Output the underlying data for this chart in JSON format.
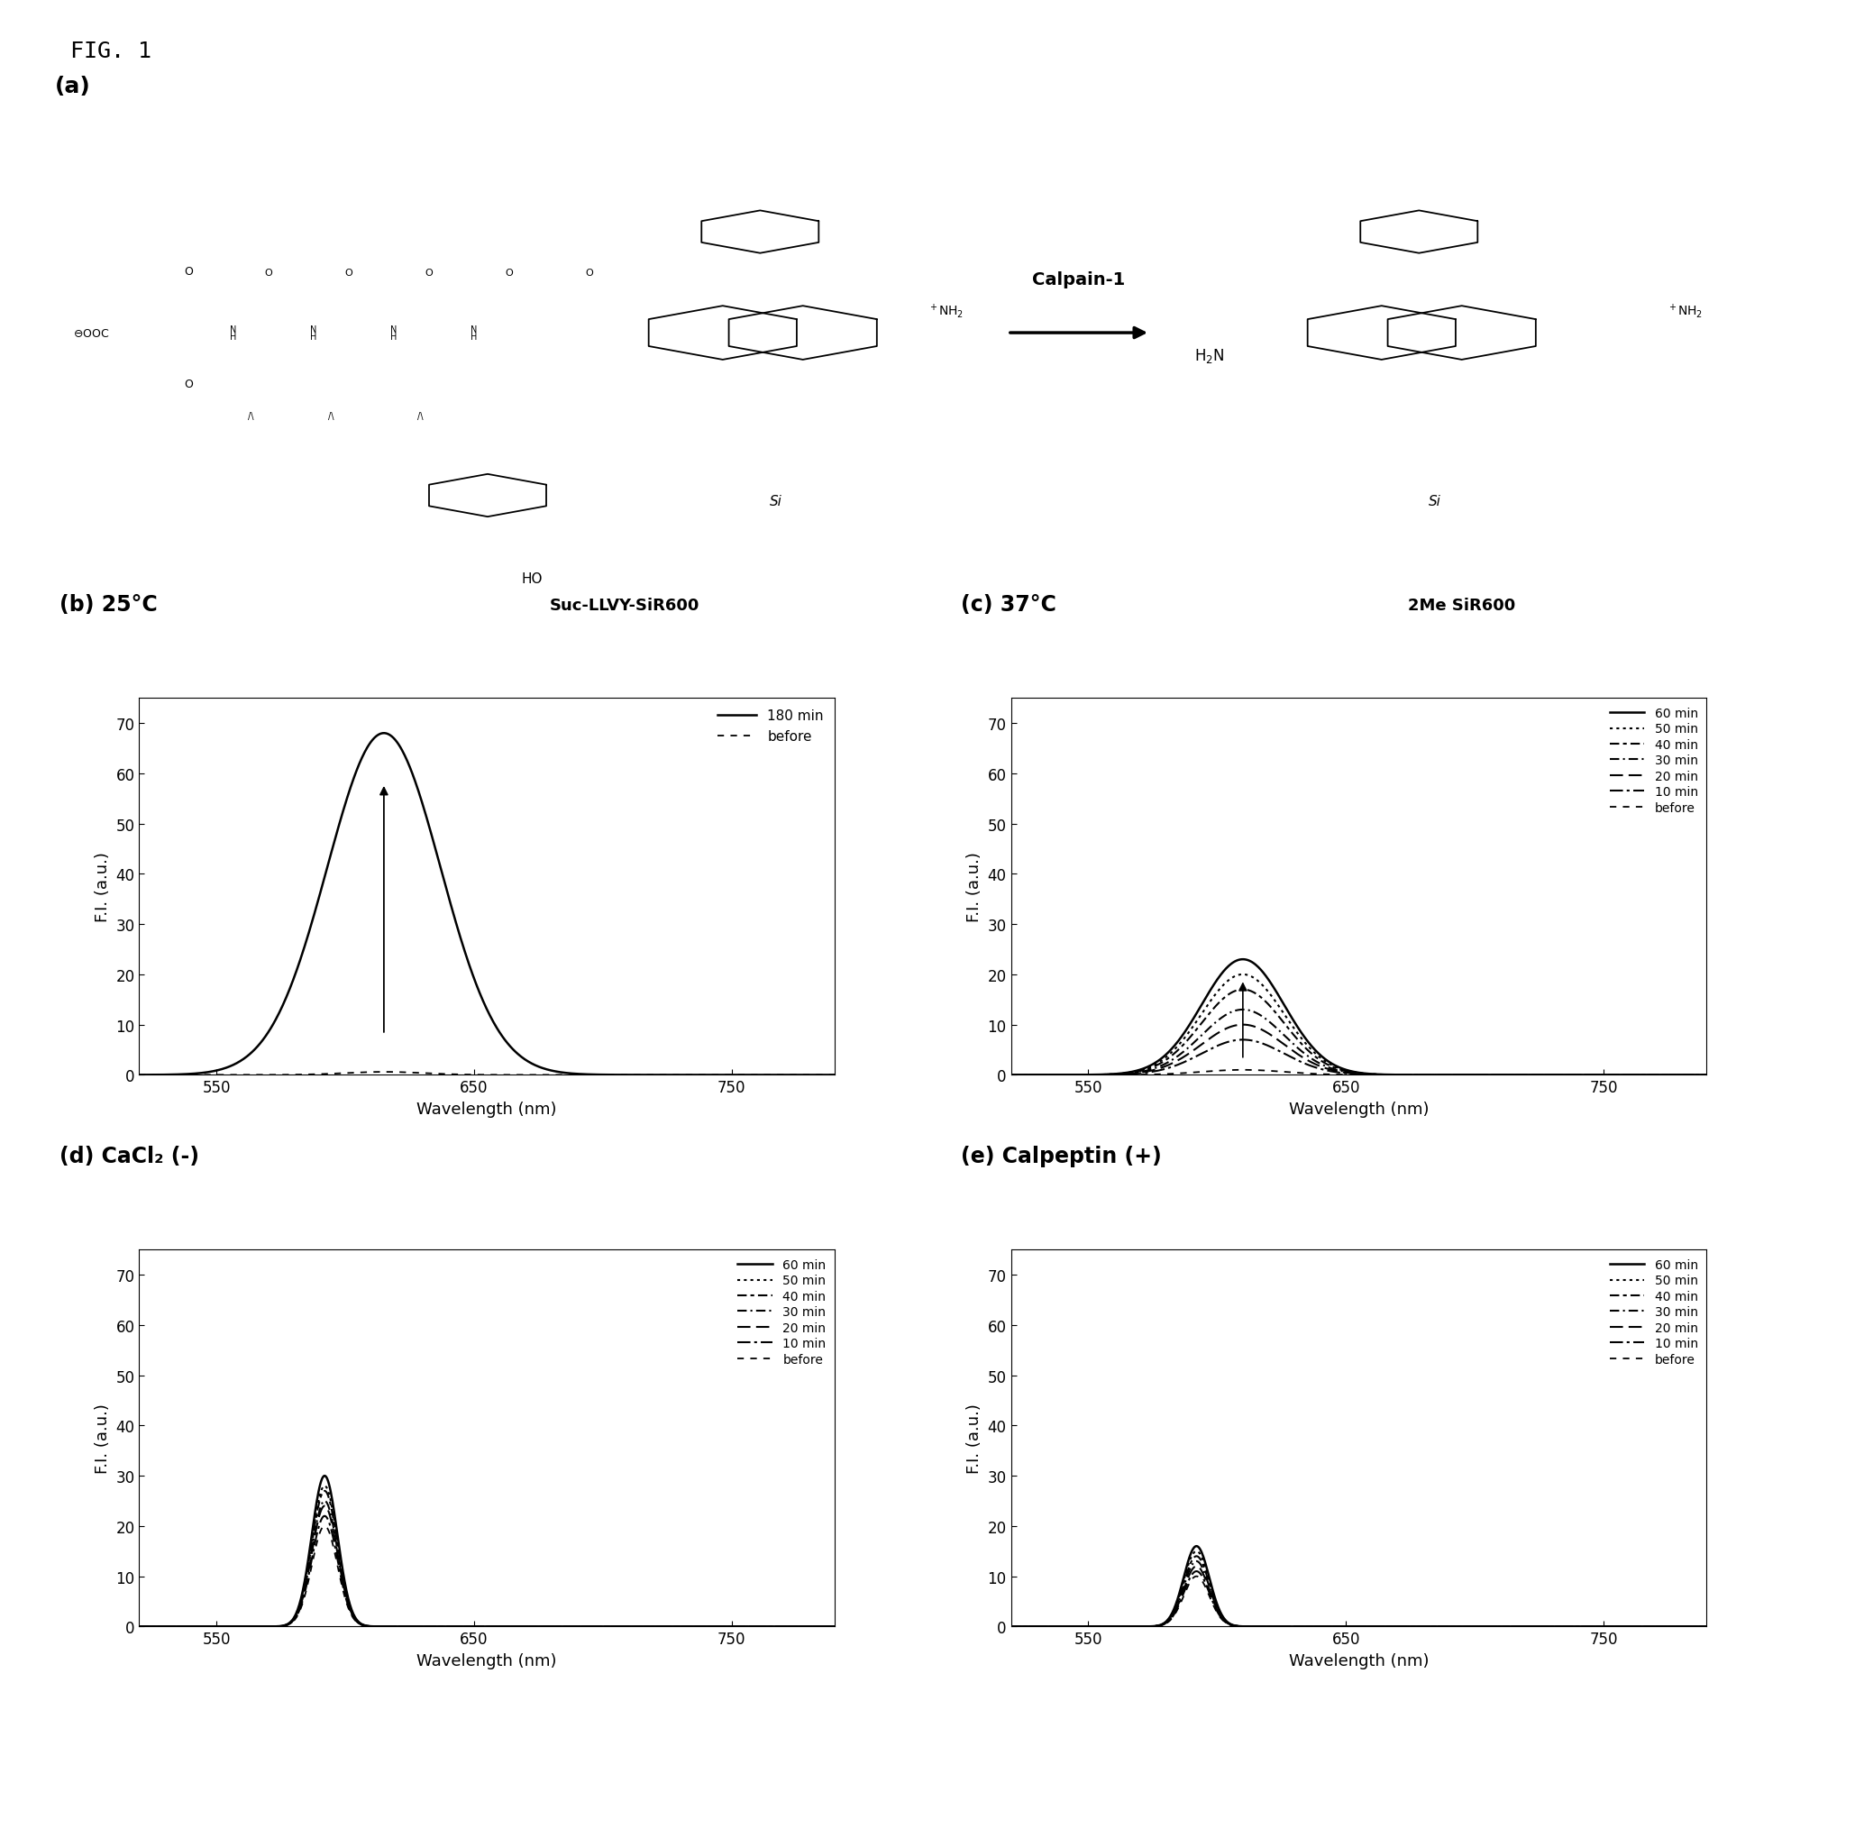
{
  "fig_label": "FIG. 1",
  "panel_a_label": "(a)",
  "panel_b_label": "(b) 25°C",
  "panel_c_label": "(c) 37°C",
  "panel_d_label": "(d) CaCl₂ (-)",
  "panel_e_label": "(e) Calpeptin (+)",
  "calpain_label": "Calpain-1",
  "suc_label": "Suc-LLVY-SiR600",
  "product_label": "2Me SiR600",
  "xlabel": "Wavelength (nm)",
  "ylabel": "F.I. (a.u.)",
  "xlim": [
    520,
    790
  ],
  "ylim": [
    0,
    75
  ],
  "yticks": [
    0,
    10,
    20,
    30,
    40,
    50,
    60,
    70
  ],
  "xticks": [
    550,
    650,
    750
  ],
  "peak_wavelength_b": 615,
  "peak_b_180": 68,
  "peak_b_sigma": 22,
  "peak_wavelength_c": 610,
  "peak_c_60": 23,
  "peak_c_50": 20,
  "peak_c_40": 17,
  "peak_c_30": 13,
  "peak_c_20": 10,
  "peak_c_10": 7,
  "peak_c_before": 1,
  "peak_c_sigma": 16,
  "peak_wavelength_d": 592,
  "peak_d_values": [
    30,
    28,
    27,
    25,
    24,
    22,
    20
  ],
  "peak_d_sigma": 5,
  "peak_wavelength_e": 592,
  "peak_e_values": [
    16,
    15,
    14,
    13,
    12,
    11,
    10
  ],
  "peak_e_sigma": 5,
  "background_color": "#ffffff",
  "line_color": "#000000"
}
